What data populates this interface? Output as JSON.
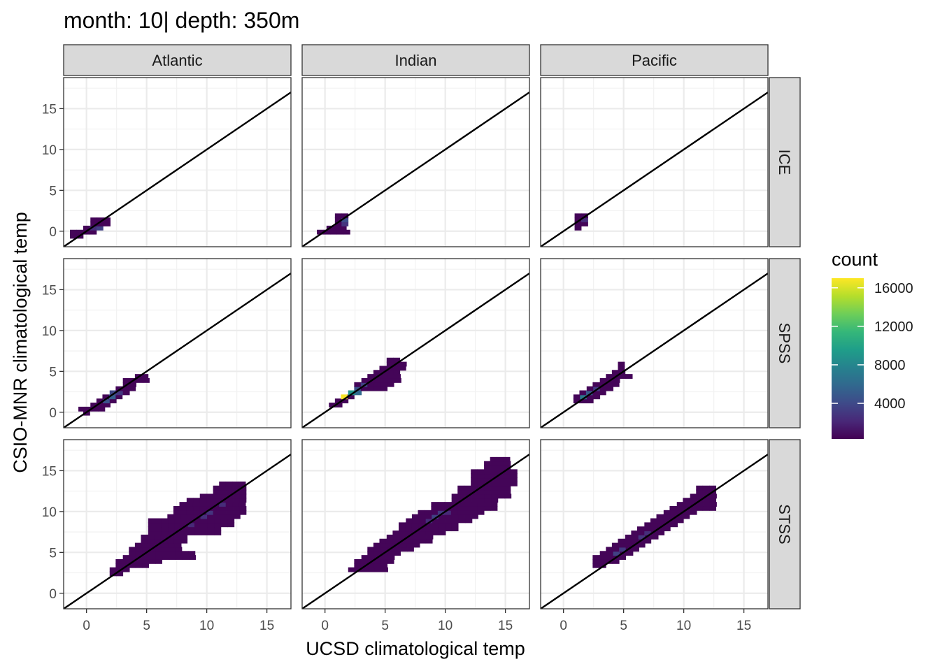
{
  "chart_data": {
    "type": "heatmap",
    "title": "month: 10| depth: 350m",
    "xlabel": "UCSD climatological temp",
    "ylabel": "CSIO-MNR climatological temp",
    "xlim": [
      -1.9,
      17
    ],
    "ylim": [
      -1.9,
      18.8
    ],
    "x_ticks": [
      0,
      5,
      10,
      15
    ],
    "y_ticks": [
      0,
      5,
      10,
      15
    ],
    "bin_width": 0.55,
    "grid": true,
    "reference_line": "y = x",
    "facet_columns": [
      "Atlantic",
      "Indian",
      "Pacific"
    ],
    "facet_rows": [
      "ICE",
      "SPSS",
      "STSS"
    ],
    "legend": {
      "title": "count",
      "position": "right",
      "min": 300,
      "max": 17000,
      "ticks": [
        4000,
        8000,
        12000,
        16000
      ],
      "palette": [
        "#440154",
        "#482878",
        "#3e4a89",
        "#31688e",
        "#26828e",
        "#1f9e89",
        "#35b779",
        "#6ece58",
        "#b5de2b",
        "#fde725"
      ]
    },
    "panels": [
      {
        "col": "Atlantic",
        "row": "ICE",
        "bands": [
          {
            "xs": -1.1,
            "xe": -0.1,
            "y": -0.6
          },
          {
            "xs": -1.1,
            "xe": 1.1,
            "y": -0.1
          },
          {
            "xs": 0.0,
            "xe": 1.6,
            "y": 0.4
          },
          {
            "xs": 0.6,
            "xe": 2.2,
            "y": 0.9
          },
          {
            "xs": 0.6,
            "xe": 2.2,
            "y": 1.4
          }
        ],
        "hot": [
          {
            "x": 0.6,
            "y": 0.4,
            "v": 2500
          },
          {
            "x": 1.1,
            "y": 0.4,
            "v": 3500
          }
        ]
      },
      {
        "col": "Indian",
        "row": "ICE",
        "bands": [
          {
            "xs": -0.4,
            "xe": 2.2,
            "y": -0.1
          },
          {
            "xs": 0.4,
            "xe": 2.2,
            "y": 0.4
          },
          {
            "xs": 1.1,
            "xe": 2.2,
            "y": 0.9
          },
          {
            "xs": 1.1,
            "xe": 2.2,
            "y": 1.4
          },
          {
            "xs": 1.1,
            "xe": 2.2,
            "y": 1.9
          }
        ],
        "hot": [
          {
            "x": 1.6,
            "y": 0.9,
            "v": 2800
          },
          {
            "x": 1.6,
            "y": 1.4,
            "v": 4200
          }
        ]
      },
      {
        "col": "Pacific",
        "row": "ICE",
        "bands": [
          {
            "xs": 1.2,
            "xe": 1.6,
            "y": 0.4
          },
          {
            "xs": 1.2,
            "xe": 2.2,
            "y": 0.9
          },
          {
            "xs": 1.2,
            "xe": 2.2,
            "y": 1.4
          },
          {
            "xs": 1.2,
            "xe": 2.2,
            "y": 1.9
          }
        ],
        "hot": [
          {
            "x": 1.6,
            "y": 1.4,
            "v": 2400
          }
        ]
      },
      {
        "col": "Atlantic",
        "row": "SPSS",
        "bands": [
          {
            "xs": 0.0,
            "xe": 0.6,
            "y": -0.1
          },
          {
            "xs": -0.4,
            "xe": 1.6,
            "y": 0.4
          },
          {
            "xs": 0.6,
            "xe": 2.2,
            "y": 0.9
          },
          {
            "xs": 1.1,
            "xe": 2.7,
            "y": 1.4
          },
          {
            "xs": 1.6,
            "xe": 3.3,
            "y": 1.9
          },
          {
            "xs": 2.2,
            "xe": 3.8,
            "y": 2.4
          },
          {
            "xs": 2.7,
            "xe": 4.3,
            "y": 2.9
          },
          {
            "xs": 3.3,
            "xe": 4.3,
            "y": 3.4
          },
          {
            "xs": 3.3,
            "xe": 5.4,
            "y": 3.9
          },
          {
            "xs": 4.3,
            "xe": 5.4,
            "y": 4.4
          }
        ],
        "hot": [
          {
            "x": 1.6,
            "y": 1.4,
            "v": 4500
          },
          {
            "x": 2.2,
            "y": 1.9,
            "v": 5200
          },
          {
            "x": 2.2,
            "y": 2.4,
            "v": 3800
          },
          {
            "x": 2.7,
            "y": 2.4,
            "v": 3000
          }
        ]
      },
      {
        "col": "Indian",
        "row": "SPSS",
        "bands": [
          {
            "xs": 0.6,
            "xe": 1.6,
            "y": 0.9
          },
          {
            "xs": 1.1,
            "xe": 2.2,
            "y": 1.4
          },
          {
            "xs": 1.6,
            "xe": 2.7,
            "y": 1.9
          },
          {
            "xs": 2.2,
            "xe": 3.3,
            "y": 2.4
          },
          {
            "xs": 2.7,
            "xe": 5.4,
            "y": 2.9
          },
          {
            "xs": 2.7,
            "xe": 5.9,
            "y": 3.4
          },
          {
            "xs": 3.3,
            "xe": 6.4,
            "y": 3.9
          },
          {
            "xs": 3.8,
            "xe": 6.4,
            "y": 4.4
          },
          {
            "xs": 4.3,
            "xe": 6.4,
            "y": 4.9
          },
          {
            "xs": 4.8,
            "xe": 7.0,
            "y": 5.4
          },
          {
            "xs": 5.4,
            "xe": 7.0,
            "y": 5.9
          },
          {
            "xs": 5.4,
            "xe": 6.4,
            "y": 6.4
          }
        ],
        "hot": [
          {
            "x": 1.6,
            "y": 1.9,
            "v": 16800
          },
          {
            "x": 2.2,
            "y": 2.4,
            "v": 9000
          },
          {
            "x": 2.7,
            "y": 2.4,
            "v": 6000
          },
          {
            "x": 2.7,
            "y": 2.9,
            "v": 4500
          },
          {
            "x": 3.3,
            "y": 3.4,
            "v": 3500
          }
        ]
      },
      {
        "col": "Pacific",
        "row": "SPSS",
        "bands": [
          {
            "xs": 1.1,
            "xe": 2.7,
            "y": 1.4
          },
          {
            "xs": 1.1,
            "xe": 3.3,
            "y": 1.9
          },
          {
            "xs": 1.6,
            "xe": 3.8,
            "y": 2.4
          },
          {
            "xs": 2.2,
            "xe": 4.3,
            "y": 2.9
          },
          {
            "xs": 2.7,
            "xe": 4.8,
            "y": 3.4
          },
          {
            "xs": 3.3,
            "xe": 4.8,
            "y": 3.9
          },
          {
            "xs": 3.8,
            "xe": 5.9,
            "y": 4.4
          },
          {
            "xs": 4.3,
            "xe": 5.4,
            "y": 4.9
          },
          {
            "xs": 4.8,
            "xe": 5.4,
            "y": 5.4
          },
          {
            "xs": 4.8,
            "xe": 5.4,
            "y": 5.9
          }
        ],
        "hot": [
          {
            "x": 1.6,
            "y": 1.9,
            "v": 7000
          },
          {
            "x": 2.2,
            "y": 2.4,
            "v": 5000
          },
          {
            "x": 2.7,
            "y": 2.9,
            "v": 3200
          }
        ]
      },
      {
        "col": "Atlantic",
        "row": "STSS",
        "bands": [
          {
            "xs": 2.2,
            "xe": 3.3,
            "y": 2.4
          },
          {
            "xs": 2.2,
            "xe": 3.8,
            "y": 2.9
          },
          {
            "xs": 2.7,
            "xe": 5.4,
            "y": 3.4
          },
          {
            "xs": 2.7,
            "xe": 6.4,
            "y": 3.9
          },
          {
            "xs": 3.3,
            "xe": 9.1,
            "y": 4.4
          },
          {
            "xs": 3.8,
            "xe": 9.1,
            "y": 4.9
          },
          {
            "xs": 3.8,
            "xe": 8.0,
            "y": 5.4
          },
          {
            "xs": 4.3,
            "xe": 8.0,
            "y": 5.9
          },
          {
            "xs": 4.8,
            "xe": 8.6,
            "y": 6.4
          },
          {
            "xs": 4.8,
            "xe": 8.6,
            "y": 6.9
          },
          {
            "xs": 5.4,
            "xe": 11.3,
            "y": 7.4
          },
          {
            "xs": 5.4,
            "xe": 11.3,
            "y": 7.9
          },
          {
            "xs": 5.4,
            "xe": 12.4,
            "y": 8.4
          },
          {
            "xs": 5.4,
            "xe": 12.4,
            "y": 8.9
          },
          {
            "xs": 7.0,
            "xe": 12.9,
            "y": 9.4
          },
          {
            "xs": 7.5,
            "xe": 13.5,
            "y": 9.9
          },
          {
            "xs": 7.5,
            "xe": 13.5,
            "y": 10.4
          },
          {
            "xs": 8.0,
            "xe": 13.5,
            "y": 10.9
          },
          {
            "xs": 8.6,
            "xe": 13.5,
            "y": 11.4
          },
          {
            "xs": 9.7,
            "xe": 13.5,
            "y": 11.9
          },
          {
            "xs": 10.8,
            "xe": 13.5,
            "y": 12.4
          },
          {
            "xs": 10.8,
            "xe": 13.5,
            "y": 12.9
          },
          {
            "xs": 11.3,
            "xe": 13.5,
            "y": 13.4
          }
        ],
        "hot": [
          {
            "x": 9.7,
            "y": 9.4,
            "v": 2600
          },
          {
            "x": 10.2,
            "y": 9.9,
            "v": 2800
          },
          {
            "x": 8.6,
            "y": 8.4,
            "v": 2200
          },
          {
            "x": 11.3,
            "y": 10.9,
            "v": 2400
          }
        ]
      },
      {
        "col": "Indian",
        "row": "STSS",
        "bands": [
          {
            "xs": 2.2,
            "xe": 5.4,
            "y": 2.9
          },
          {
            "xs": 2.7,
            "xe": 5.4,
            "y": 3.4
          },
          {
            "xs": 2.7,
            "xe": 5.9,
            "y": 3.9
          },
          {
            "xs": 3.3,
            "xe": 5.9,
            "y": 4.4
          },
          {
            "xs": 3.8,
            "xe": 6.4,
            "y": 4.9
          },
          {
            "xs": 3.8,
            "xe": 7.5,
            "y": 5.4
          },
          {
            "xs": 4.3,
            "xe": 8.0,
            "y": 5.9
          },
          {
            "xs": 4.8,
            "xe": 9.1,
            "y": 6.4
          },
          {
            "xs": 5.4,
            "xe": 9.1,
            "y": 6.9
          },
          {
            "xs": 5.9,
            "xe": 10.2,
            "y": 7.4
          },
          {
            "xs": 6.4,
            "xe": 11.3,
            "y": 7.9
          },
          {
            "xs": 6.4,
            "xe": 11.3,
            "y": 8.4
          },
          {
            "xs": 7.0,
            "xe": 12.4,
            "y": 8.9
          },
          {
            "xs": 7.5,
            "xe": 12.9,
            "y": 9.4
          },
          {
            "xs": 8.0,
            "xe": 13.5,
            "y": 9.9
          },
          {
            "xs": 9.1,
            "xe": 14.5,
            "y": 10.4
          },
          {
            "xs": 9.1,
            "xe": 14.5,
            "y": 10.9
          },
          {
            "xs": 10.8,
            "xe": 14.5,
            "y": 11.4
          },
          {
            "xs": 10.8,
            "xe": 15.6,
            "y": 11.9
          },
          {
            "xs": 11.3,
            "xe": 15.6,
            "y": 12.4
          },
          {
            "xs": 11.3,
            "xe": 15.6,
            "y": 12.9
          },
          {
            "xs": 12.4,
            "xe": 16.1,
            "y": 13.4
          },
          {
            "xs": 12.4,
            "xe": 16.1,
            "y": 13.9
          },
          {
            "xs": 12.4,
            "xe": 16.1,
            "y": 14.4
          },
          {
            "xs": 12.4,
            "xe": 16.1,
            "y": 14.9
          },
          {
            "xs": 13.5,
            "xe": 15.6,
            "y": 15.4
          },
          {
            "xs": 13.5,
            "xe": 15.6,
            "y": 15.9
          },
          {
            "xs": 14.0,
            "xe": 15.6,
            "y": 16.4
          }
        ],
        "hot": [
          {
            "x": 9.1,
            "y": 9.4,
            "v": 3500
          },
          {
            "x": 9.7,
            "y": 9.9,
            "v": 3000
          },
          {
            "x": 10.2,
            "y": 9.9,
            "v": 2200
          },
          {
            "x": 8.6,
            "y": 8.9,
            "v": 2400
          }
        ]
      },
      {
        "col": "Pacific",
        "row": "STSS",
        "bands": [
          {
            "xs": 2.7,
            "xe": 3.8,
            "y": 3.4
          },
          {
            "xs": 2.7,
            "xe": 4.8,
            "y": 3.9
          },
          {
            "xs": 2.7,
            "xe": 5.4,
            "y": 4.4
          },
          {
            "xs": 3.3,
            "xe": 5.9,
            "y": 4.9
          },
          {
            "xs": 3.8,
            "xe": 6.4,
            "y": 5.4
          },
          {
            "xs": 4.3,
            "xe": 7.0,
            "y": 5.9
          },
          {
            "xs": 4.8,
            "xe": 7.5,
            "y": 6.4
          },
          {
            "xs": 5.4,
            "xe": 8.0,
            "y": 6.9
          },
          {
            "xs": 5.9,
            "xe": 8.6,
            "y": 7.4
          },
          {
            "xs": 6.4,
            "xe": 9.1,
            "y": 7.9
          },
          {
            "xs": 7.0,
            "xe": 9.7,
            "y": 8.4
          },
          {
            "xs": 7.5,
            "xe": 10.2,
            "y": 8.9
          },
          {
            "xs": 8.0,
            "xe": 10.8,
            "y": 9.4
          },
          {
            "xs": 8.6,
            "xe": 11.3,
            "y": 9.9
          },
          {
            "xs": 9.1,
            "xe": 12.9,
            "y": 10.4
          },
          {
            "xs": 9.7,
            "xe": 12.9,
            "y": 10.9
          },
          {
            "xs": 10.2,
            "xe": 12.9,
            "y": 11.4
          },
          {
            "xs": 10.8,
            "xe": 12.9,
            "y": 11.9
          },
          {
            "xs": 11.3,
            "xe": 12.9,
            "y": 12.4
          },
          {
            "xs": 11.3,
            "xe": 12.9,
            "y": 12.9
          }
        ],
        "hot": [
          {
            "x": 4.3,
            "y": 4.9,
            "v": 3500
          },
          {
            "x": 4.8,
            "y": 5.4,
            "v": 3000
          },
          {
            "x": 6.4,
            "y": 6.9,
            "v": 2800
          },
          {
            "x": 7.0,
            "y": 7.4,
            "v": 2500
          }
        ]
      }
    ]
  }
}
